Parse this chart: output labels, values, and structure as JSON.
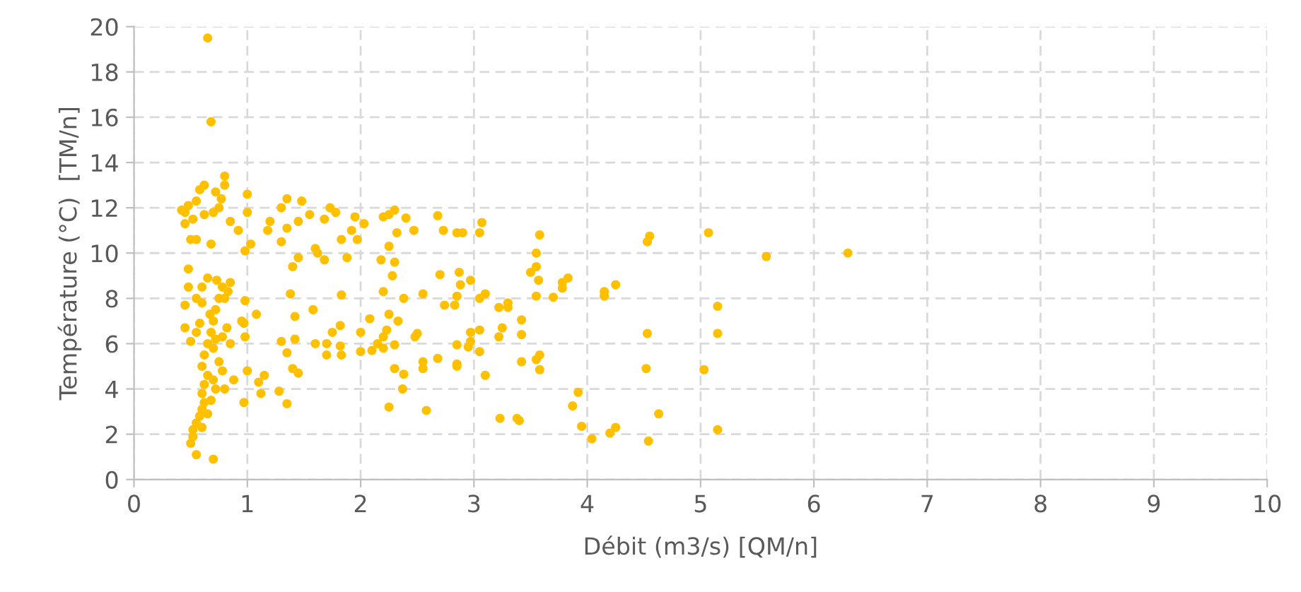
{
  "chart_data": {
    "type": "scatter",
    "xlabel": "Débit (m3/s) [QM/n]",
    "ylabel": "Température (°C)  [TM/n]",
    "xlim": [
      0,
      10
    ],
    "ylim": [
      0,
      20
    ],
    "xticks": [
      0,
      1,
      2,
      3,
      4,
      5,
      6,
      7,
      8,
      9,
      10
    ],
    "yticks": [
      0,
      2,
      4,
      6,
      8,
      10,
      12,
      14,
      16,
      18,
      20
    ],
    "grid": true,
    "marker": "circle",
    "legend": false,
    "series": [
      {
        "color": "#ffc000",
        "x": [
          6.3,
          5.58,
          5.07,
          5.15,
          5.15,
          5.15,
          5.03,
          4.55,
          4.53,
          4.53,
          4.52,
          4.54,
          4.63,
          4.25,
          4.15,
          4.15,
          4.25,
          4.2,
          4.04,
          3.95,
          3.92,
          3.87,
          3.83,
          3.78,
          3.78,
          3.7,
          3.58,
          3.57,
          3.55,
          3.55,
          3.5,
          3.55,
          3.58,
          3.55,
          3.58,
          3.42,
          3.42,
          3.42,
          3.38,
          3.4,
          3.23,
          3.3,
          3.3,
          3.22,
          3.25,
          3.22,
          3.1,
          3.05,
          3.07,
          3.05,
          3.05,
          3.05,
          3.1,
          2.97,
          2.97,
          2.97,
          2.95,
          2.9,
          2.85,
          2.88,
          2.87,
          2.85,
          2.83,
          2.85,
          2.85,
          2.85,
          2.73,
          2.68,
          2.7,
          2.74,
          2.68,
          2.58,
          2.55,
          2.55,
          2.55,
          2.5,
          2.48,
          2.47,
          2.4,
          2.38,
          2.38,
          2.37,
          2.32,
          2.3,
          2.3,
          2.28,
          2.33,
          2.3,
          2.3,
          2.25,
          2.25,
          2.2,
          2.25,
          2.25,
          2.23,
          2.2,
          2.18,
          2.2,
          2.2,
          2.15,
          2.1,
          2.08,
          2.0,
          2.0,
          2.03,
          1.95,
          1.97,
          1.92,
          1.88,
          1.83,
          1.83,
          1.82,
          1.82,
          1.83,
          1.78,
          1.73,
          1.75,
          1.7,
          1.7,
          1.68,
          1.68,
          1.62,
          1.6,
          1.55,
          1.58,
          1.6,
          1.45,
          1.48,
          1.45,
          1.4,
          1.38,
          1.42,
          1.42,
          1.45,
          1.4,
          1.35,
          1.35,
          1.3,
          1.35,
          1.3,
          1.3,
          1.28,
          1.35,
          1.2,
          1.18,
          1.15,
          1.1,
          1.12,
          1.08,
          1.03,
          1.0,
          1.0,
          0.98,
          0.98,
          0.97,
          0.98,
          1.0,
          0.97,
          0.95,
          0.92,
          0.85,
          0.85,
          0.83,
          0.8,
          0.85,
          0.88,
          0.8,
          0.8,
          0.77,
          0.72,
          0.75,
          0.7,
          0.68,
          0.65,
          0.68,
          0.7,
          0.62,
          0.58,
          0.55,
          0.52,
          0.48,
          0.45,
          0.42,
          0.45,
          0.5,
          0.55,
          0.62,
          0.48,
          0.48,
          0.45,
          0.45,
          0.5,
          0.55,
          0.6,
          0.6,
          0.65,
          0.73,
          0.75,
          0.72,
          0.7,
          0.68,
          0.65,
          0.62,
          0.6,
          0.65,
          0.7,
          0.72,
          0.75,
          0.78,
          0.8,
          0.82,
          0.78,
          0.62,
          0.6,
          0.62,
          0.6,
          0.58,
          0.55,
          0.52,
          0.52,
          0.5,
          0.55,
          0.6,
          0.65,
          0.68,
          0.7,
          0.72,
          0.67,
          0.58,
          0.55,
          0.78
        ],
        "values": [
          10.0,
          9.85,
          10.9,
          7.65,
          6.45,
          2.2,
          4.85,
          10.75,
          10.5,
          6.45,
          4.9,
          1.7,
          2.9,
          8.6,
          8.3,
          8.1,
          2.3,
          2.05,
          1.8,
          2.35,
          3.85,
          3.25,
          8.9,
          8.45,
          8.7,
          8.05,
          10.8,
          8.8,
          10.0,
          9.4,
          9.15,
          8.1,
          5.5,
          5.3,
          4.85,
          7.05,
          6.4,
          5.2,
          2.7,
          2.6,
          2.7,
          7.8,
          7.6,
          7.6,
          6.7,
          6.3,
          8.2,
          8.0,
          11.35,
          10.9,
          6.6,
          5.65,
          4.6,
          8.8,
          6.5,
          6.1,
          5.85,
          10.9,
          10.9,
          8.6,
          9.15,
          8.1,
          7.7,
          5.95,
          5.1,
          5.0,
          11.0,
          11.65,
          9.05,
          7.7,
          5.35,
          3.05,
          8.2,
          5.2,
          4.9,
          6.45,
          6.3,
          11.0,
          11.55,
          8.0,
          4.65,
          4.0,
          10.9,
          11.9,
          9.6,
          9.0,
          7.0,
          5.95,
          4.9,
          3.2,
          11.7,
          11.6,
          10.3,
          7.3,
          6.6,
          8.3,
          9.7,
          6.3,
          5.8,
          6.0,
          5.7,
          7.1,
          6.5,
          5.65,
          11.3,
          11.6,
          10.6,
          11.0,
          9.8,
          10.6,
          8.15,
          6.8,
          5.9,
          5.5,
          11.8,
          12.0,
          6.5,
          6.0,
          5.5,
          9.7,
          11.5,
          10.0,
          10.2,
          11.7,
          7.5,
          6.0,
          11.4,
          12.3,
          9.8,
          9.4,
          8.2,
          7.2,
          6.2,
          4.7,
          4.9,
          3.35,
          11.1,
          12.0,
          12.4,
          10.5,
          6.1,
          3.9,
          5.6,
          11.4,
          11.0,
          4.6,
          4.3,
          3.8,
          7.3,
          10.4,
          12.6,
          11.8,
          10.1,
          7.9,
          6.9,
          6.3,
          4.8,
          3.4,
          7.0,
          11.0,
          11.4,
          8.7,
          8.3,
          8.0,
          6.0,
          4.4,
          13.4,
          13.0,
          12.4,
          12.7,
          12.0,
          11.8,
          10.4,
          19.5,
          15.8,
          0.9,
          13.0,
          12.8,
          12.3,
          11.5,
          12.1,
          11.8,
          11.9,
          11.3,
          10.6,
          10.6,
          11.7,
          9.3,
          8.5,
          7.7,
          6.7,
          6.1,
          8.0,
          7.8,
          8.5,
          8.9,
          8.8,
          8.0,
          7.5,
          7.0,
          6.5,
          6.0,
          5.5,
          5.0,
          4.6,
          4.4,
          4.0,
          5.2,
          4.8,
          4.0,
          6.7,
          6.3,
          4.2,
          3.8,
          3.4,
          3.1,
          2.8,
          2.5,
          2.2,
          1.9,
          1.6,
          1.1,
          2.3,
          2.9,
          3.5,
          5.8,
          6.2,
          7.3,
          6.9,
          6.5,
          8.5
        ]
      }
    ]
  }
}
